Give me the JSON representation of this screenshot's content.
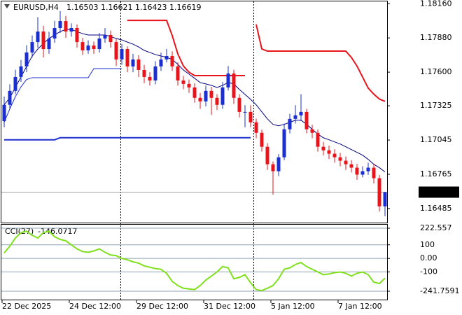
{
  "chart_data": [
    {
      "type": "candlestick",
      "title": "EURUSD,H4",
      "categories": [
        "22 Dec 2025",
        null,
        null,
        null,
        null,
        null,
        null,
        null,
        null,
        null,
        null,
        null,
        "24 Dec 12:00",
        null,
        null,
        null,
        null,
        null,
        null,
        null,
        null,
        null,
        null,
        null,
        "29 Dec 12:00",
        null,
        null,
        null,
        null,
        null,
        null,
        null,
        null,
        null,
        null,
        null,
        "31 Dec 12:00",
        null,
        null,
        null,
        null,
        null,
        null,
        null,
        null,
        null,
        null,
        null,
        "5 Jan 12:00",
        null,
        null,
        null,
        null,
        null,
        null,
        null,
        null,
        null,
        null,
        null,
        "7 Jan 12:00",
        null,
        null,
        null,
        null,
        null,
        null,
        null,
        null
      ],
      "open": [
        1.172,
        1.17333,
        1.17447,
        1.17561,
        1.17647,
        1.17761,
        1.17846,
        1.17932,
        1.17789,
        1.17875,
        1.17961,
        1.18018,
        1.17932,
        1.17961,
        1.17846,
        1.17778,
        1.17818,
        1.17789,
        1.17875,
        1.17904,
        1.17846,
        1.17704,
        1.17789,
        1.17647,
        1.17704,
        1.17618,
        1.17561,
        1.17532,
        1.17647,
        1.17704,
        1.17732,
        1.17647,
        1.17532,
        1.17504,
        1.17475,
        1.1739,
        1.17361,
        1.17447,
        1.1739,
        1.17333,
        1.17475,
        1.17589,
        1.1739,
        1.17275,
        1.17275,
        1.1719,
        1.17104,
        1.1699,
        1.16847,
        1.1679,
        1.16904,
        1.17133,
        1.17218,
        1.17247,
        1.17275,
        1.17133,
        1.17104,
        1.1699,
        1.16961,
        1.16933,
        1.16904,
        1.16876,
        1.16847,
        1.16819,
        1.16762,
        1.1679,
        1.16819,
        1.16733,
        1.16503
      ],
      "high": [
        1.174,
        1.175,
        1.1762,
        1.177,
        1.1782,
        1.179,
        1.1805,
        1.1798,
        1.1793,
        1.1802,
        1.181,
        1.1806,
        1.18,
        1.1799,
        1.1788,
        1.1786,
        1.1785,
        1.1792,
        1.1796,
        1.1794,
        1.1787,
        1.1783,
        1.1781,
        1.1775,
        1.1774,
        1.1766,
        1.176,
        1.1769,
        1.1776,
        1.1779,
        1.1777,
        1.1768,
        1.1757,
        1.1754,
        1.1751,
        1.1743,
        1.1749,
        1.1748,
        1.1742,
        1.1752,
        1.1765,
        1.1762,
        1.1742,
        1.1733,
        1.1733,
        1.1722,
        1.1713,
        1.1702,
        1.1687,
        1.1693,
        1.1718,
        1.1726,
        1.1733,
        1.1742,
        1.173,
        1.1717,
        1.1713,
        1.1703,
        1.17,
        1.1697,
        1.1694,
        1.1691,
        1.1688,
        1.1685,
        1.1683,
        1.1686,
        1.1685,
        1.1676,
        1.16621
      ],
      "low": [
        1.1715,
        1.173,
        1.1742,
        1.1752,
        1.176,
        1.1772,
        1.178,
        1.1772,
        1.1775,
        1.1784,
        1.1792,
        1.1788,
        1.1789,
        1.178,
        1.1774,
        1.1775,
        1.1775,
        1.1776,
        1.1784,
        1.178,
        1.1765,
        1.1766,
        1.176,
        1.176,
        1.1756,
        1.1751,
        1.1749,
        1.175,
        1.1761,
        1.1768,
        1.1761,
        1.1749,
        1.1746,
        1.1743,
        1.1735,
        1.173,
        1.1732,
        1.1725,
        1.1729,
        1.173,
        1.1745,
        1.1734,
        1.1723,
        1.1715,
        1.1715,
        1.1706,
        1.1695,
        1.168,
        1.166,
        1.1675,
        1.1688,
        1.171,
        1.1718,
        1.172,
        1.171,
        1.1706,
        1.1695,
        1.1692,
        1.1689,
        1.1686,
        1.1683,
        1.168,
        1.1678,
        1.1672,
        1.1674,
        1.1676,
        1.1669,
        1.1646,
        1.16423
      ],
      "close": [
        1.17333,
        1.17447,
        1.17561,
        1.17647,
        1.17761,
        1.17846,
        1.17932,
        1.17789,
        1.17875,
        1.17961,
        1.18018,
        1.17932,
        1.17961,
        1.17846,
        1.17778,
        1.17818,
        1.17789,
        1.17875,
        1.17904,
        1.17846,
        1.17704,
        1.17789,
        1.17647,
        1.17704,
        1.17618,
        1.17561,
        1.17532,
        1.17647,
        1.17704,
        1.17732,
        1.17647,
        1.17532,
        1.17504,
        1.17475,
        1.1739,
        1.17361,
        1.17447,
        1.1739,
        1.17333,
        1.17475,
        1.17589,
        1.1739,
        1.17275,
        1.17275,
        1.1719,
        1.17104,
        1.1699,
        1.16847,
        1.1679,
        1.16904,
        1.17133,
        1.17218,
        1.17247,
        1.17275,
        1.17133,
        1.17104,
        1.1699,
        1.16961,
        1.16933,
        1.16904,
        1.16876,
        1.16847,
        1.16819,
        1.16762,
        1.1679,
        1.16819,
        1.16733,
        1.16503,
        1.16619
      ],
      "up_color": "#1b2fd0",
      "down_color": "#e8141c",
      "overlays": [
        {
          "color": "#000080",
          "width": 1,
          "values": [
            1.17333,
            1.1739,
            1.17475,
            1.17561,
            1.17647,
            1.17732,
            1.17789,
            1.17835,
            1.17875,
            1.17904,
            1.17932,
            1.17949,
            1.17949,
            1.17932,
            1.17915,
            1.17904,
            1.17904,
            1.17904,
            1.17904,
            1.17892,
            1.17875,
            1.17864,
            1.17846,
            1.17829,
            1.17806,
            1.17778,
            1.17761,
            1.17744,
            1.17732,
            1.17721,
            1.17704,
            1.17664,
            1.17618,
            1.17584,
            1.1755,
            1.17515,
            1.17504,
            1.17492,
            1.17475,
            1.17492,
            1.17515,
            1.17504,
            1.17458,
            1.17418,
            1.17378,
            1.17333,
            1.17275,
            1.17218,
            1.17173,
            1.17161,
            1.17173,
            1.1719,
            1.17207,
            1.17207,
            1.17173,
            1.17133,
            1.17093,
            1.17064,
            1.17047,
            1.1703,
            1.17013,
            1.1699,
            1.16967,
            1.16944,
            1.16921,
            1.16887,
            1.16847,
            1.16819,
            1.16784
          ]
        },
        {
          "color": "#1b2fd0",
          "width": 1,
          "values": [
            1.1719,
            1.173,
            1.174,
            1.1748,
            1.1754,
            1.17555,
            1.17555,
            1.17555,
            1.17555,
            1.17555,
            1.17555,
            1.17555,
            1.17555,
            1.17555,
            1.17555,
            1.17555,
            1.17629,
            1.17629,
            1.17629,
            1.17629,
            1.17629,
            1.17629,
            null,
            null,
            null,
            null,
            null,
            null,
            null,
            null,
            null,
            null,
            null,
            null,
            null,
            null,
            null,
            null,
            null,
            null,
            null,
            null,
            null,
            null,
            null,
            null,
            null,
            null,
            null,
            null,
            null,
            null,
            null,
            null,
            null,
            null,
            null,
            null,
            null,
            null,
            null,
            null,
            null,
            null,
            null,
            null,
            null,
            null,
            null
          ]
        },
        {
          "color": "#1b2fd0",
          "width": 2,
          "values": [
            1.17047,
            1.17047,
            1.17047,
            1.17047,
            1.17047,
            1.17047,
            1.17047,
            1.17047,
            1.17047,
            1.17047,
            1.17064,
            1.17064,
            1.17064,
            1.17064,
            1.17064,
            1.17064,
            1.17064,
            1.17064,
            1.17064,
            1.17064,
            1.17064,
            1.17064,
            1.17064,
            1.17064,
            1.17064,
            1.17064,
            1.17064,
            1.17064,
            1.17064,
            1.17064,
            1.17064,
            1.17064,
            1.17064,
            1.17064,
            1.17064,
            1.17064,
            1.17064,
            1.17064,
            1.17064,
            1.17064,
            1.17064,
            1.17064,
            1.17064,
            1.17064,
            1.17064,
            null,
            null,
            null,
            null,
            null,
            null,
            null,
            null,
            null,
            null,
            null,
            null,
            null,
            null,
            null,
            null,
            null,
            null,
            null,
            null,
            null,
            null,
            null,
            null
          ]
        },
        {
          "color": "#e8141c",
          "width": 2,
          "values": [
            null,
            null,
            null,
            null,
            null,
            null,
            null,
            null,
            null,
            null,
            null,
            null,
            null,
            null,
            null,
            null,
            null,
            null,
            null,
            null,
            null,
            null,
            1.18023,
            1.18023,
            1.18023,
            1.18023,
            1.18023,
            1.18023,
            1.18023,
            1.18023,
            1.179,
            1.1775,
            1.1765,
            1.176,
            1.17572,
            1.17572,
            1.17572,
            1.17572,
            1.17572,
            1.17572,
            1.17572,
            1.17572,
            1.17572,
            1.17572,
            null,
            1.1799,
            1.1779,
            1.17772,
            1.17772,
            1.17772,
            1.17772,
            1.17772,
            1.17772,
            1.17772,
            1.17772,
            1.17772,
            1.17772,
            1.17772,
            1.17772,
            1.17772,
            1.17772,
            1.17772,
            1.1772,
            1.1765,
            1.1756,
            1.1747,
            1.1742,
            1.1738,
            1.17361
          ]
        }
      ],
      "ylim": [
        1.1637,
        1.1819
      ],
      "yticks": [
        {
          "value": 1.1816,
          "label": "1.18160"
        },
        {
          "value": 1.1788,
          "label": "1.17880"
        },
        {
          "value": 1.176,
          "label": "1.17600"
        },
        1.17325,
        1.17045,
        1.16765,
        1.16485
      ]
    },
    {
      "type": "line",
      "title": "CCI(27)",
      "color": "#7fe01c",
      "values": [
        40,
        90,
        150,
        190,
        200,
        170,
        150,
        190,
        200,
        160,
        140,
        130,
        100,
        70,
        50,
        45,
        55,
        70,
        45,
        25,
        20,
        0,
        -10,
        -25,
        -35,
        -55,
        -65,
        -75,
        -80,
        -110,
        -170,
        -200,
        -220,
        -225,
        -230,
        -200,
        -160,
        -130,
        -100,
        -60,
        -70,
        -150,
        -140,
        -120,
        -180,
        -230,
        -237,
        -220,
        -200,
        -150,
        -80,
        -70,
        -45,
        -30,
        -60,
        -80,
        -100,
        -120,
        -115,
        -105,
        -100,
        -110,
        -130,
        -110,
        -100,
        -120,
        -175,
        -185,
        -146.0717
      ],
      "ylim": [
        -241.7591,
        222.557
      ],
      "yticks": [
        222.557,
        100,
        {
          "value": 0,
          "label": "0.00"
        },
        -100,
        -241.7591
      ],
      "grid": true
    }
  ]
}
